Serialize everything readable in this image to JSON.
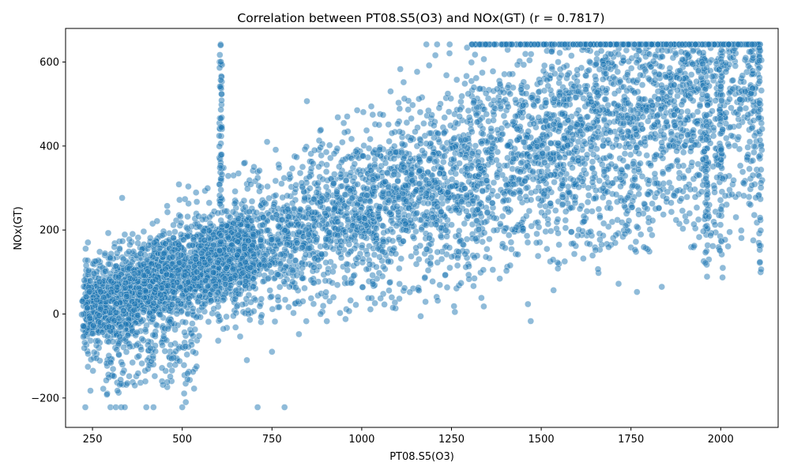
{
  "chart_data": {
    "type": "scatter",
    "title": "Correlation between PT08.S5(O3) and NOx(GT) (r = 0.7817)",
    "xlabel": "PT08.S5(O3)",
    "ylabel": "NOx(GT)",
    "xlim": [
      175,
      2160
    ],
    "ylim": [
      -270,
      680
    ],
    "xticks": [
      250,
      500,
      750,
      1000,
      1250,
      1500,
      1750,
      2000
    ],
    "yticks": [
      -200,
      0,
      200,
      400,
      600
    ],
    "xtick_labels": [
      "250",
      "500",
      "750",
      "1000",
      "1250",
      "1500",
      "1750",
      "2000"
    ],
    "ytick_labels": [
      "−200",
      "0",
      "200",
      "400",
      "600"
    ],
    "point_color": "#1f77b4",
    "point_edge_color": "#ffffff",
    "grid": false,
    "correlation_r": 0.7817,
    "points_note": "",
    "cluster": {
      "x_range": [
        220,
        2110
      ],
      "y_cap": 642,
      "y_floor": -222
    }
  }
}
